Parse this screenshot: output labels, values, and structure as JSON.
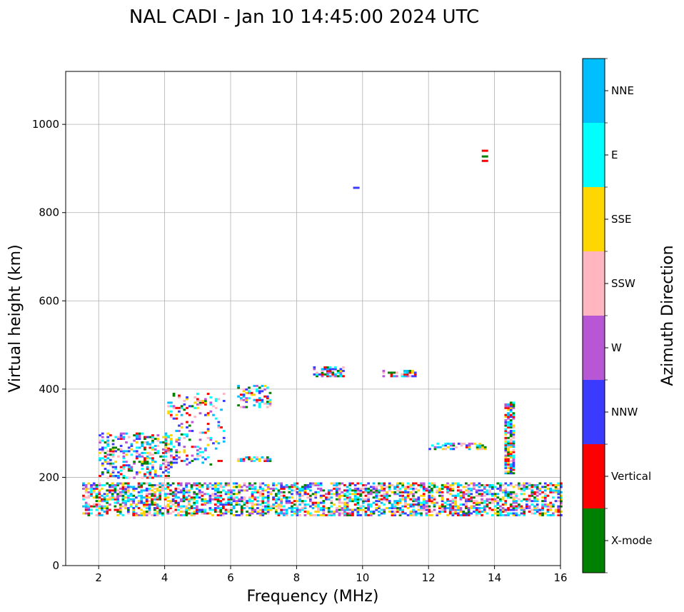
{
  "chart_data": {
    "type": "scatter",
    "title": "NAL CADI - Jan 10 14:45:00 2024 UTC",
    "xlabel": "Frequency (MHz)",
    "ylabel": "Virtual height (km)",
    "xlim": [
      1,
      16
    ],
    "ylim": [
      0,
      1120
    ],
    "xticks": [
      2,
      4,
      6,
      8,
      10,
      12,
      14,
      16
    ],
    "yticks": [
      0,
      200,
      400,
      600,
      800,
      1000
    ],
    "grid": true,
    "colorbar": {
      "label": "Azimuth Direction",
      "categories": [
        {
          "name": "X-mode",
          "color": "#008000"
        },
        {
          "name": "Vertical",
          "color": "#ff0000"
        },
        {
          "name": "NNW",
          "color": "#3b3bff"
        },
        {
          "name": "W",
          "color": "#b857d6"
        },
        {
          "name": "SSW",
          "color": "#ffb6c1"
        },
        {
          "name": "SSE",
          "color": "#ffd700"
        },
        {
          "name": "E",
          "color": "#00ffff"
        },
        {
          "name": "NNE",
          "color": "#00bfff"
        }
      ]
    },
    "echo_regions": [
      {
        "name": "E-layer trace",
        "f": [
          1.5,
          16.0
        ],
        "h": [
          115,
          190
        ],
        "density": 0.55
      },
      {
        "name": "F-layer ramp low",
        "f": [
          2.0,
          4.2
        ],
        "h": [
          200,
          300
        ],
        "density": 0.35
      },
      {
        "name": "F-layer ramp high",
        "f": [
          4.0,
          5.8
        ],
        "h": [
          230,
          390
        ],
        "density": 0.18
      },
      {
        "name": "6-7 MHz cluster",
        "f": [
          6.2,
          7.2
        ],
        "h": [
          360,
          410
        ],
        "density": 0.35
      },
      {
        "name": "6-7 MHz base",
        "f": [
          6.2,
          7.2
        ],
        "h": [
          238,
          246
        ],
        "density": 0.7
      },
      {
        "name": "8.5-9.5 MHz band",
        "f": [
          8.5,
          9.4
        ],
        "h": [
          430,
          450
        ],
        "density": 0.6
      },
      {
        "name": "10.5-11.5 MHz band",
        "f": [
          10.6,
          11.6
        ],
        "h": [
          430,
          445
        ],
        "density": 0.6
      },
      {
        "name": "12-13.5 MHz band",
        "f": [
          12.0,
          13.7
        ],
        "h": [
          265,
          280
        ],
        "density": 0.5
      },
      {
        "name": "14.4 MHz column",
        "f": [
          14.3,
          14.55
        ],
        "h": [
          210,
          370
        ],
        "density": 0.8
      },
      {
        "name": "Isolated echoes",
        "points": [
          [
            9.8,
            857
          ],
          [
            13.7,
            918
          ],
          [
            13.7,
            928
          ],
          [
            13.7,
            941
          ]
        ]
      }
    ]
  }
}
